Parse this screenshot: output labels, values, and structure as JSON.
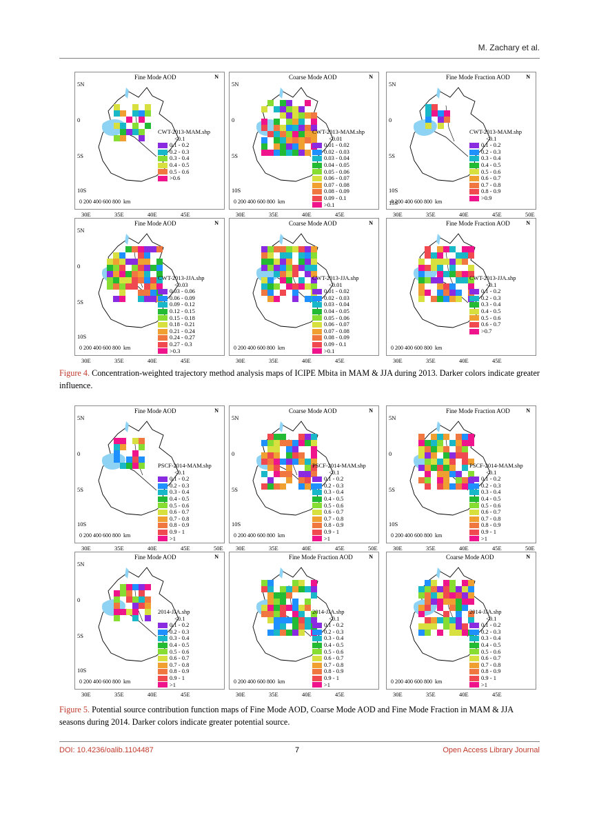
{
  "header": {
    "author": "M. Zachary et al."
  },
  "colors": {
    "lake": "#8fd3f4",
    "ramp": [
      "#8a2be2",
      "#1e90ff",
      "#18b8c8",
      "#22bb33",
      "#88dd33",
      "#d8e040",
      "#f0a030",
      "#f07840",
      "#f04a50",
      "#f0148c"
    ]
  },
  "figure4": {
    "caption_label": "Figure 4.",
    "caption_text": " Concentration-weighted trajectory method analysis maps of ICIPE Mbita in MAM & JJA during 2013. Darker colors indicate greater influence.",
    "maps": [
      {
        "title": "Fine Mode AOD",
        "lat": [
          "5N",
          "0",
          "5S",
          "10S"
        ],
        "lon": [
          "30E",
          "35E",
          "40E",
          "45E"
        ],
        "legend_title": "CWT-2013-MAM.shp",
        "legend": [
          "<0.1",
          "0.1 - 0.2",
          "0.2 - 0.3",
          "0.3 - 0.4",
          "0.4 - 0.5",
          "0.5 - 0.6",
          ">0.6"
        ],
        "scale": "0   200  400  600  800",
        "km": "km",
        "cells": 6
      },
      {
        "title": "Coarse Mode AOD",
        "lat": [
          "5N",
          "0",
          "5S",
          "10S"
        ],
        "lon": [
          "30E",
          "35E",
          "40E",
          "45E"
        ],
        "legend_title": "CWT-2013-MAM.shp",
        "legend": [
          "<0.01",
          "0.01 - 0.02",
          "0.02 - 0.03",
          "0.03 - 0.04",
          "0.04 - 0.05",
          "0.05 - 0.06",
          "0.06 - 0.07",
          "0.07 - 0.08",
          "0.08 - 0.09",
          "0.09 - 0.1",
          ">0.1"
        ],
        "scale": "0   200  400  600  800",
        "km": "km",
        "cells": 9
      },
      {
        "title": "Fine Mode Fraction AOD",
        "lat": [
          "5N",
          "0",
          "5S",
          "10S",
          "15S"
        ],
        "lon": [
          "30E",
          "35E",
          "40E",
          "45E",
          "50E"
        ],
        "legend_title": "CWT-2013-MAM.shp",
        "legend": [
          "<0.1",
          "0.1 - 0.2",
          "0.2 - 0.3",
          "0.3 - 0.4",
          "0.4 - 0.5",
          "0.5 - 0.6",
          "0.6 - 0.7",
          "0.7 - 0.8",
          "0.8 - 0.9",
          ">0.9"
        ],
        "scale": "0  200 400 600 800",
        "km": "km",
        "cells": 4
      },
      {
        "title": "Fine Mode AOD",
        "lat": [
          "5N",
          "0",
          "5S",
          "10S"
        ],
        "lon": [
          "30E",
          "35E",
          "40E",
          "45E"
        ],
        "legend_title": "CWT-2013-JJA.shp",
        "legend": [
          "<0.03",
          "0.03 - 0.06",
          "0.06 - 0.09",
          "0.09 - 0.12",
          "0.12 - 0.15",
          "0.15 - 0.18",
          "0.18 - 0.21",
          "0.21 - 0.24",
          "0.24 - 0.27",
          "0.27 - 0.3",
          ">0.3"
        ],
        "scale": "0   200   400   600 800",
        "km": "km",
        "cells": 9
      },
      {
        "title": "Coarse Mode AOD",
        "lat": [],
        "lon": [
          "30E",
          "35E",
          "40E",
          "45E"
        ],
        "legend_title": "CWT-2013-JJA.shp",
        "legend": [
          "<0.01",
          "0.01 - 0.02",
          "0.02 - 0.03",
          "0.03 - 0.04",
          "0.04 - 0.05",
          "0.05 - 0.06",
          "0.06 - 0.07",
          "0.07 - 0.08",
          "0.08 - 0.09",
          "0.09 - 0.1",
          ">0.1"
        ],
        "scale": "0   200   400   600   800",
        "km": "km",
        "cells": 9
      },
      {
        "title": "Fine Mode Fraction AOD",
        "lat": [],
        "lon": [
          "30E",
          "35E",
          "40E",
          "45E"
        ],
        "legend_title": "CWT-2013-JJA.shp",
        "legend": [
          "<0.1",
          "0.1 - 0.2",
          "0.2 - 0.3",
          "0.3 - 0.4",
          "0.4 - 0.5",
          "0.5 - 0.6",
          "0.6 - 0.7",
          ">0.7"
        ],
        "scale": "0   200   400 600 800",
        "km": "km",
        "cells": 9
      }
    ]
  },
  "figure5": {
    "caption_label": "Figure 5.",
    "caption_text": " Potential source contribution function maps of Fine Mode AOD, Coarse Mode AOD and Fine Mode Fraction in MAM & JJA seasons during 2014. Darker colors indicate greater potential source.",
    "maps": [
      {
        "title": "Fine Mode AOD",
        "lat": [
          "5N",
          "0",
          "5S",
          "10S"
        ],
        "lon": [
          "30E",
          "35E",
          "40E",
          "45E",
          "50E"
        ],
        "legend_title": "PSCF-2014-MAM.shp",
        "legend": [
          "<0.1",
          "0.1 - 0.2",
          "0.2 - 0.3",
          "0.3 - 0.4",
          "0.4 - 0.5",
          "0.5 - 0.6",
          "0.6 - 0.7",
          "0.7 - 0.8",
          "0.8 - 0.9",
          "0.9 - 1",
          ">1"
        ],
        "scale": "0  200 400 600 800",
        "km": "km",
        "cells": 5
      },
      {
        "title": "Coarse Mode AOD",
        "lat": [
          "5N",
          "0",
          "5S",
          "10S"
        ],
        "lon": [
          "30E",
          "35E",
          "40E",
          "45E",
          "50E"
        ],
        "legend_title": "PSCF-2014-MAM.shp",
        "legend": [
          "<0.1",
          "0.1 - 0.2",
          "0.2 - 0.3",
          "0.3 - 0.4",
          "0.4 - 0.5",
          "0.5 - 0.6",
          "0.6 - 0.7",
          "0.7 - 0.8",
          "0.8 - 0.9",
          "0.9 - 1",
          ">1"
        ],
        "scale": "0  200 400 600 800",
        "km": "km",
        "cells": 9
      },
      {
        "title": "Fine Mode Fraction AOD",
        "lat": [
          "5N",
          "0",
          "5S",
          "10S"
        ],
        "lon": [
          "30E",
          "35E",
          "40E",
          "45E",
          "50E"
        ],
        "legend_title": "PSCF-2014-MAM.shp",
        "legend": [
          "<0.1",
          "0.1 - 0.2",
          "0.2 - 0.3",
          "0.3 - 0.4",
          "0.4 - 0.5",
          "0.5 - 0.6",
          "0.6 - 0.7",
          "0.7 - 0.8",
          "0.8 - 0.9",
          "0.9 - 1",
          ">1"
        ],
        "scale": "0  200 400 600 800",
        "km": "km",
        "cells": 9
      },
      {
        "title": "Fine Mode AOD",
        "lat": [
          "5N",
          "0",
          "5S",
          "10S"
        ],
        "lon": [
          "30E",
          "35E",
          "40E",
          "45E"
        ],
        "legend_title": "2014-JJA.shp",
        "legend": [
          "<0.1",
          "0.1 - 0.2",
          "0.2 - 0.3",
          "0.3 - 0.4",
          "0.4 - 0.5",
          "0.5 - 0.6",
          "0.6 - 0.7",
          "0.7 - 0.8",
          "0.8 - 0.9",
          "0.9 - 1",
          ">1"
        ],
        "scale": "0   200   400   600   800",
        "km": "km",
        "cells": 6
      },
      {
        "title": "Fine Mode Fraction AOD",
        "lat": [],
        "lon": [
          "30E",
          "35E",
          "40E",
          "45E"
        ],
        "legend_title": "2014-JJA.shp",
        "legend": [
          "<0.1",
          "0.1 - 0.2",
          "0.2 - 0.3",
          "0.3 - 0.4",
          "0.4 - 0.5",
          "0.5 - 0.6",
          "0.6 - 0.7",
          "0.7 - 0.8",
          "0.8 - 0.9",
          "0.9 - 1",
          ">1"
        ],
        "scale": "0   200   400   600   800",
        "km": "km",
        "cells": 9
      },
      {
        "title": "Coarse Mode AOD",
        "lat": [],
        "lon": [
          "30E",
          "35E",
          "40E",
          "45E"
        ],
        "legend_title": "2014-JJA.shp",
        "legend": [
          "<0.1",
          "0.1 - 0.2",
          "0.2 - 0.3",
          "0.3 - 0.4",
          "0.4 - 0.5",
          "0.5 - 0.6",
          "0.6 - 0.7",
          "0.7 - 0.8",
          "0.8 - 0.9",
          "0.9 - 1",
          ">1"
        ],
        "scale": "0   200   400   600   800",
        "km": "km",
        "cells": 9
      }
    ]
  },
  "north_label": "N",
  "footer": {
    "doi": "DOI: 10.4236/oalib.1104487",
    "page": "7",
    "journal": "Open Access Library Journal"
  }
}
